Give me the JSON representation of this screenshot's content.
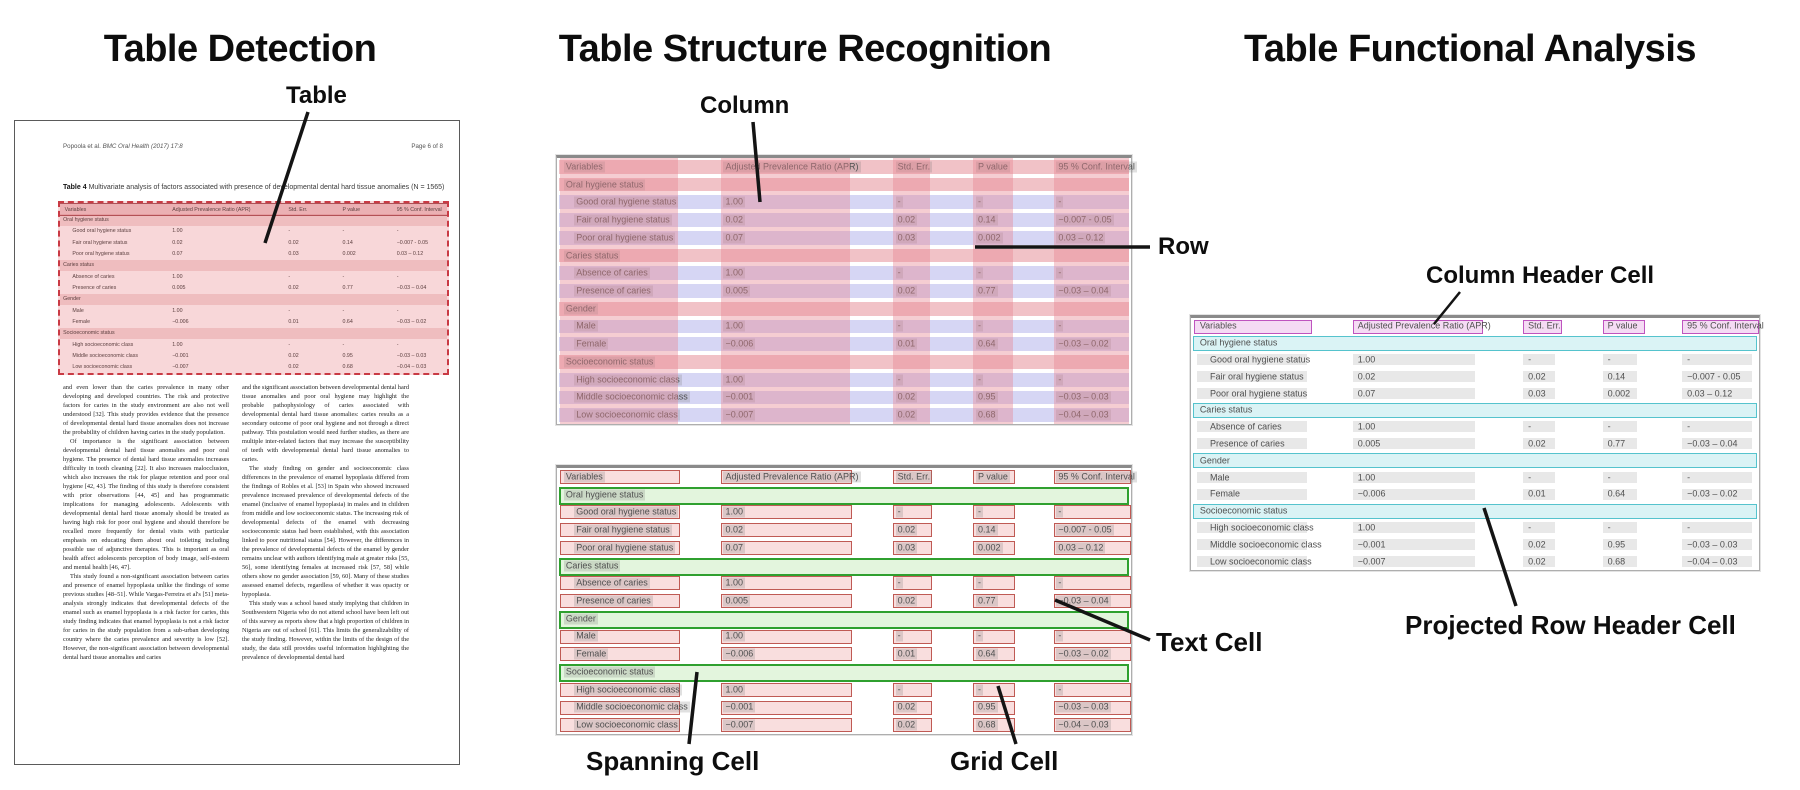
{
  "panels": {
    "detection": {
      "title": "Table Detection",
      "callout_table": "Table"
    },
    "structure": {
      "title": "Table Structure Recognition",
      "callout_column": "Column",
      "callout_row": "Row",
      "callout_spanning_cell": "Spanning Cell",
      "callout_grid_cell": "Grid Cell",
      "callout_text_cell": "Text Cell"
    },
    "functional": {
      "title": "Table Functional Analysis",
      "callout_column_header": "Column Header Cell",
      "callout_projected_row_header": "Projected Row Header Cell"
    }
  },
  "document": {
    "header_left_author": "Popoola et al.",
    "header_left_journal": "BMC Oral Health  (2017) 17:8",
    "header_right": "Page 6 of 8",
    "caption_label": "Table 4",
    "caption_text": "Multivariate analysis of factors associated with presence of developmental dental hard tissue anomalies (N = 1565)",
    "body_left": [
      "and even lower than the caries prevalence in many other developing and developed countries. The risk and protective factors for caries in the study environment are also not well understood [32]. This study provides evidence that the presence of developmental dental hard tissue anomalies does not increase the probability of children having caries in the study population.",
      "Of importance is the significant association between developmental dental hard tissue anomalies and poor oral hygiene. The presence of dental hard tissue anomalies increases difficulty in tooth cleaning [22]. It also increases malocclusion, which also increases the risk for plaque retention and poor oral hygiene [42, 43]. The finding of this study is therefore consistent with prior observations [44, 45] and has programmatic implications for managing adolescents. Adolescents with developmental dental hard tissue anomaly should be treated as having high risk for poor oral hygiene and should therefore be recalled more frequently for dental visits with particular emphasis on educating them about oral toileting including possible use of adjunctive therapies. This is important as oral health affect adolescents perception of body image, self-esteem and mental health [46, 47].",
      "This study found a non-significant association between caries and presence of enamel hypoplasia unlike the findings of some previous studies [48–51]. While Vargas-Ferreira et al's [51] meta-analysis strongly indicates that developmental defects of the enamel such as enamel hypoplasia is a risk factor for caries, this study finding indicates that enamel hypoplasia is not a risk factor for caries in the study population from a sub-urban developing country where the caries prevalence and severity is low [52]. However, the non-significant association between developmental dental hard tissue anomalies and caries"
    ],
    "body_right": [
      "and the significant association between developmental dental hard tissue anomalies and poor oral hygiene may highlight the probable pathophysiology of caries associated with developmental dental hard tissue anomalies: caries results as a secondary outcome of poor oral hygiene and not through a direct pathway. This postulation would need further studies, as there are multiple inter-related factors that may increase the susceptibility of teeth with developmental dental hard tissue anomalies to caries.",
      "The study finding on gender and socioeconomic class differences in the prevalence of enamel hypoplasia differed from the findings of Robles et al. [53] in Spain who showed increased prevalence increased prevalence of developmental defects of the enamel (inclusive of enamel hypoplasia) in males and in children from middle and low socioeconomic status. The increasing risk of developmental defects of the enamel with decreasing socioeconomic status had been established, with this association linked to poor nutritional status [54]. However, the differences in the prevalence of developmental defects of the enamel by gender remains unclear with authors identifying male at greater risks [55, 56], some identifying females at increased risk [57, 58] while others show no gender association [59, 60]. Many of these studies assessed enamel defects, regardless of whether it was opacity or hypoplasia.",
      "This study was a school based study implying that children in Southwestern Nigeria who do not attend school have been left out of this survey as reports show that a high proportion of children in Nigeria are out of school [61]. This limits the generalizability of the study finding. However, within the limits of the design of the study, the data still provides useful information highlighting the prevalence of developmental dental hard"
    ]
  },
  "table_data": {
    "columns": [
      "Variables",
      "Adjusted Prevalence Ratio (APR)",
      "Std. Err.",
      "P value",
      "95 % Conf. Interval"
    ],
    "rows": [
      {
        "label": "Oral hygiene status",
        "section": true,
        "values": []
      },
      {
        "label": "Good oral hygiene status",
        "section": false,
        "values": [
          "1.00",
          "-",
          "-",
          "-"
        ]
      },
      {
        "label": "Fair oral hygiene status",
        "section": false,
        "values": [
          "0.02",
          "0.02",
          "0.14",
          "−0.007 - 0.05"
        ]
      },
      {
        "label": "Poor oral hygiene status",
        "section": false,
        "values": [
          "0.07",
          "0.03",
          "0.002",
          "0.03 – 0.12"
        ]
      },
      {
        "label": "Caries status",
        "section": true,
        "values": []
      },
      {
        "label": "Absence of caries",
        "section": false,
        "values": [
          "1.00",
          "-",
          "-",
          "-"
        ]
      },
      {
        "label": "Presence of caries",
        "section": false,
        "values": [
          "0.005",
          "0.02",
          "0.77",
          "−0.03 – 0.04"
        ]
      },
      {
        "label": "Gender",
        "section": true,
        "values": []
      },
      {
        "label": "Male",
        "section": false,
        "values": [
          "1.00",
          "-",
          "-",
          "-"
        ]
      },
      {
        "label": "Female",
        "section": false,
        "values": [
          "−0.006",
          "0.01",
          "0.64",
          "−0.03 – 0.02"
        ]
      },
      {
        "label": "Socioeconomic status",
        "section": true,
        "values": []
      },
      {
        "label": "High socioeconomic class",
        "section": false,
        "values": [
          "1.00",
          "-",
          "-",
          "-"
        ]
      },
      {
        "label": "Middle socioeconomic class",
        "section": false,
        "values": [
          "−0.001",
          "0.02",
          "0.95",
          "−0.03 – 0.03"
        ]
      },
      {
        "label": "Low socioeconomic class",
        "section": false,
        "values": [
          "−0.007",
          "0.02",
          "0.68",
          "−0.04 – 0.03"
        ]
      }
    ]
  },
  "colors": {
    "detection_fill": "#eea0a4",
    "detection_border": "#c93a44",
    "column_overlay": "#e78893",
    "row_overlay": "#8a8ae0",
    "grid_cell_fill": "#f9dede",
    "grid_cell_border": "#bf5a54",
    "spanning_cell_fill": "#e3f5dd",
    "spanning_cell_border": "#2fa02f",
    "column_header_fill": "#f5dbf4",
    "column_header_border": "#bf54bf",
    "projected_row_header_fill": "#daf3f5",
    "projected_row_header_border": "#55c3cd",
    "text_cell_highlight": "#737373",
    "connector": "#141414"
  }
}
